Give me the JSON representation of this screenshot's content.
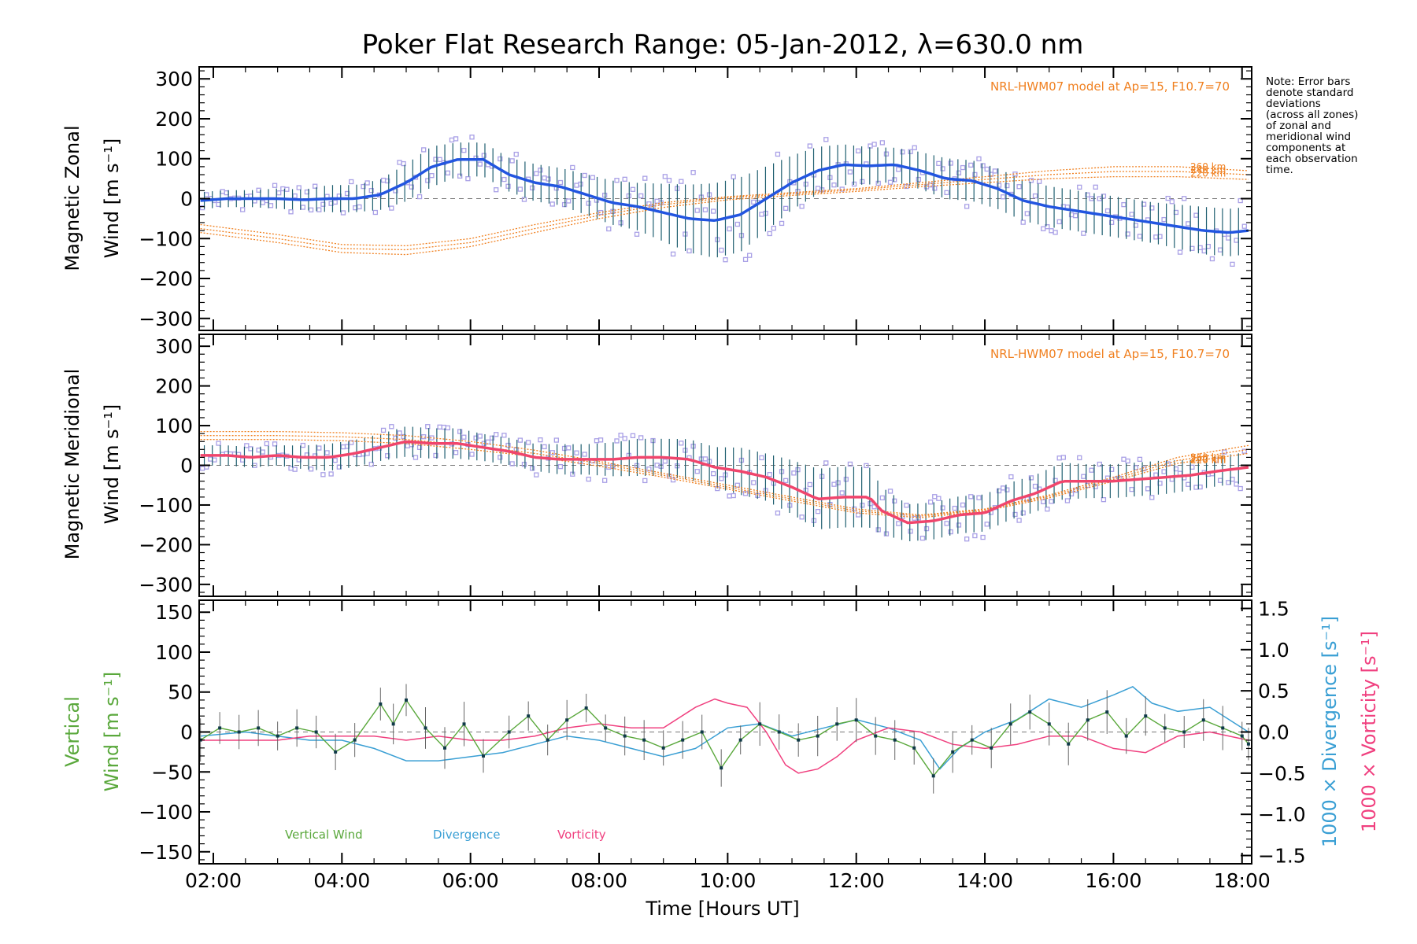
{
  "title": "Poker Flat Research Range: 05-Jan-2012, λ=630.0 nm",
  "note_lines": [
    "Note: Error bars",
    "denote standard",
    "deviations",
    "(across all zones)",
    "of zonal and",
    "meridional wind",
    "components at",
    "each observation",
    "time."
  ],
  "xaxis": {
    "label": "Time [Hours UT]",
    "ticks": [
      "02:00",
      "04:00",
      "06:00",
      "08:00",
      "10:00",
      "12:00",
      "14:00",
      "16:00",
      "18:00"
    ],
    "range_hours": [
      1.78,
      18.15
    ]
  },
  "colors": {
    "zonal": "#2255e0",
    "meridional": "#f0456c",
    "vertical": "#5aa83c",
    "divergence": "#3a9fd4",
    "vorticity": "#f0407f",
    "model": "#f08020",
    "zone_box": "#a9a0e6",
    "errorbar": "#1f5f70"
  },
  "chart_data": [
    {
      "type": "line",
      "panel": "zonal",
      "ylabel_line1": "Magnetic Zonal",
      "ylabel_line2": "Wind [m s⁻¹]",
      "ylim": [
        -330,
        330
      ],
      "yticks": [
        "300",
        "200",
        "100",
        "0",
        "−100",
        "−200",
        "−300"
      ],
      "model_label": "NRL-HWM07 model at Ap=15, F10.7=70",
      "model_altitudes": [
        "260 km",
        "240 km",
        "220 km"
      ],
      "series": [
        {
          "role": "observed",
          "x": [
            1.8,
            2.2,
            2.6,
            3.0,
            3.4,
            3.8,
            4.2,
            4.6,
            5.0,
            5.4,
            5.8,
            6.2,
            6.6,
            7.0,
            7.4,
            7.8,
            8.2,
            8.6,
            9.0,
            9.4,
            9.8,
            10.2,
            10.6,
            11.0,
            11.4,
            11.8,
            12.2,
            12.6,
            13.0,
            13.4,
            13.8,
            14.2,
            14.6,
            15.0,
            15.4,
            15.8,
            16.2,
            16.6,
            17.0,
            17.4,
            17.8,
            18.1
          ],
          "y": [
            -5,
            0,
            0,
            0,
            -3,
            0,
            0,
            10,
            40,
            80,
            98,
            98,
            60,
            40,
            30,
            10,
            -10,
            -20,
            -35,
            -50,
            -55,
            -40,
            0,
            40,
            70,
            85,
            82,
            85,
            70,
            50,
            45,
            25,
            -5,
            -20,
            -30,
            -40,
            -50,
            -60,
            -70,
            -80,
            -85,
            -80
          ],
          "spread": [
            25,
            25,
            25,
            30,
            30,
            40,
            40,
            45,
            55,
            60,
            50,
            50,
            50,
            55,
            55,
            60,
            65,
            70,
            85,
            100,
            110,
            110,
            95,
            80,
            70,
            60,
            55,
            50,
            55,
            60,
            60,
            60,
            60,
            60,
            60,
            60,
            60,
            60,
            65,
            70,
            70,
            70
          ]
        },
        {
          "role": "model",
          "name": "260 km",
          "x": [
            1.8,
            3.0,
            4.0,
            5.0,
            6.0,
            7.0,
            8.0,
            9.0,
            10.0,
            11.0,
            12.0,
            13.0,
            14.0,
            15.0,
            16.0,
            17.0,
            18.1
          ],
          "y": [
            -65,
            -90,
            -115,
            -118,
            -100,
            -65,
            -35,
            -10,
            5,
            15,
            25,
            40,
            55,
            70,
            80,
            80,
            70
          ]
        },
        {
          "role": "model",
          "name": "240 km",
          "x": [
            1.8,
            3.0,
            4.0,
            5.0,
            6.0,
            7.0,
            8.0,
            9.0,
            10.0,
            11.0,
            12.0,
            13.0,
            14.0,
            15.0,
            16.0,
            17.0,
            18.1
          ],
          "y": [
            -75,
            -100,
            -125,
            -128,
            -110,
            -75,
            -42,
            -15,
            2,
            12,
            22,
            35,
            48,
            60,
            68,
            68,
            60
          ]
        },
        {
          "role": "model",
          "name": "220 km",
          "x": [
            1.8,
            3.0,
            4.0,
            5.0,
            6.0,
            7.0,
            8.0,
            9.0,
            10.0,
            11.0,
            12.0,
            13.0,
            14.0,
            15.0,
            16.0,
            17.0,
            18.1
          ],
          "y": [
            -85,
            -110,
            -135,
            -140,
            -120,
            -85,
            -50,
            -22,
            -3,
            8,
            18,
            30,
            40,
            50,
            55,
            55,
            48
          ]
        }
      ]
    },
    {
      "type": "line",
      "panel": "meridional",
      "ylabel_line1": "Magnetic Meridional",
      "ylabel_line2": "Wind [m s⁻¹]",
      "ylim": [
        -330,
        330
      ],
      "yticks": [
        "300",
        "200",
        "100",
        "0",
        "−100",
        "−200",
        "−300"
      ],
      "model_label": "NRL-HWM07 model at Ap=15, F10.7=70",
      "model_altitudes": [
        "260 km",
        "240 km",
        "220 km"
      ],
      "series": [
        {
          "role": "observed",
          "x": [
            1.8,
            2.2,
            2.6,
            3.0,
            3.4,
            3.8,
            4.2,
            4.6,
            5.0,
            5.4,
            5.8,
            6.2,
            6.6,
            7.0,
            7.4,
            7.8,
            8.2,
            8.6,
            9.0,
            9.4,
            9.8,
            10.2,
            10.6,
            11.0,
            11.4,
            11.8,
            12.2,
            12.4,
            12.8,
            13.2,
            13.6,
            14.0,
            14.4,
            14.8,
            15.2,
            15.6,
            16.0,
            16.4,
            16.8,
            17.2,
            17.6,
            18.1
          ],
          "y": [
            25,
            25,
            20,
            25,
            20,
            20,
            30,
            45,
            60,
            55,
            55,
            45,
            35,
            20,
            15,
            15,
            15,
            20,
            20,
            15,
            -5,
            -15,
            -30,
            -55,
            -85,
            -80,
            -80,
            -115,
            -145,
            -140,
            -125,
            -120,
            -90,
            -70,
            -40,
            -40,
            -40,
            -35,
            -30,
            -25,
            -15,
            -5
          ],
          "spread": [
            30,
            30,
            30,
            30,
            35,
            40,
            40,
            40,
            45,
            45,
            45,
            40,
            40,
            40,
            45,
            45,
            50,
            55,
            55,
            60,
            60,
            70,
            70,
            80,
            90,
            90,
            90,
            70,
            55,
            55,
            55,
            55,
            55,
            55,
            55,
            50,
            50,
            50,
            50,
            45,
            45,
            45
          ]
        },
        {
          "role": "model",
          "name": "260 km",
          "x": [
            1.8,
            3.0,
            4.0,
            5.0,
            6.0,
            7.0,
            8.0,
            9.0,
            10.0,
            11.0,
            12.0,
            13.0,
            14.0,
            15.0,
            16.0,
            17.0,
            18.1
          ],
          "y": [
            85,
            85,
            82,
            75,
            60,
            38,
            10,
            -20,
            -50,
            -80,
            -110,
            -125,
            -110,
            -75,
            -30,
            20,
            50
          ]
        },
        {
          "role": "model",
          "name": "240 km",
          "x": [
            1.8,
            3.0,
            4.0,
            5.0,
            6.0,
            7.0,
            8.0,
            9.0,
            10.0,
            11.0,
            12.0,
            13.0,
            14.0,
            15.0,
            16.0,
            17.0,
            18.1
          ],
          "y": [
            75,
            75,
            72,
            65,
            50,
            30,
            5,
            -25,
            -55,
            -85,
            -115,
            -128,
            -112,
            -78,
            -35,
            12,
            40
          ]
        },
        {
          "role": "model",
          "name": "220 km",
          "x": [
            1.8,
            3.0,
            4.0,
            5.0,
            6.0,
            7.0,
            8.0,
            9.0,
            10.0,
            11.0,
            12.0,
            13.0,
            14.0,
            15.0,
            16.0,
            17.0,
            18.1
          ],
          "y": [
            65,
            65,
            62,
            55,
            40,
            22,
            -2,
            -30,
            -60,
            -90,
            -120,
            -132,
            -115,
            -82,
            -40,
            5,
            30
          ]
        }
      ]
    },
    {
      "type": "line",
      "panel": "vertical",
      "ylabel_line1": "Vertical",
      "ylabel_line2": "Wind [m s⁻¹]",
      "ylim": [
        -165,
        165
      ],
      "yticks": [
        "150",
        "100",
        "50",
        "0",
        "−50",
        "−100",
        "−150"
      ],
      "right_axis": {
        "label_divergence": "1000 × Divergence [s⁻¹]",
        "label_vorticity": "1000 × Vorticity [s⁻¹]",
        "ylim": [
          -1.6,
          1.6
        ],
        "yticks": [
          "1.5",
          "1.0",
          "0.5",
          "0.0",
          "−0.5",
          "−1.0",
          "−1.5"
        ]
      },
      "legend": [
        "Vertical Wind",
        "Divergence",
        "Vorticity"
      ],
      "series": [
        {
          "role": "vertical",
          "name": "Vertical Wind",
          "x": [
            1.8,
            2.1,
            2.4,
            2.7,
            3.0,
            3.3,
            3.6,
            3.9,
            4.2,
            4.6,
            4.8,
            5.0,
            5.3,
            5.6,
            5.9,
            6.2,
            6.6,
            6.9,
            7.2,
            7.5,
            7.8,
            8.1,
            8.4,
            8.7,
            9.0,
            9.3,
            9.6,
            9.9,
            10.2,
            10.5,
            10.8,
            11.1,
            11.4,
            11.7,
            12.0,
            12.3,
            12.6,
            12.9,
            13.2,
            13.5,
            13.8,
            14.1,
            14.4,
            14.7,
            15.0,
            15.3,
            15.6,
            15.9,
            16.2,
            16.5,
            16.8,
            17.1,
            17.4,
            17.7,
            18.0,
            18.1
          ],
          "y": [
            -10,
            5,
            0,
            5,
            -5,
            5,
            0,
            -25,
            -10,
            35,
            10,
            40,
            5,
            -20,
            10,
            -30,
            0,
            20,
            -10,
            15,
            30,
            5,
            -5,
            -10,
            -20,
            -10,
            0,
            -45,
            -10,
            10,
            0,
            -10,
            -5,
            10,
            15,
            -5,
            -10,
            -20,
            -55,
            -25,
            -10,
            -20,
            10,
            25,
            10,
            -15,
            15,
            25,
            -5,
            20,
            5,
            0,
            15,
            5,
            -5,
            -15
          ]
        },
        {
          "role": "divergence",
          "name": "Divergence",
          "x": [
            1.8,
            2.5,
            3.0,
            3.5,
            4.0,
            4.5,
            5.0,
            5.5,
            6.0,
            6.5,
            7.0,
            7.5,
            8.0,
            8.5,
            9.0,
            9.5,
            10.0,
            10.5,
            11.0,
            11.5,
            12.0,
            12.5,
            13.0,
            13.3,
            13.6,
            14.0,
            14.5,
            15.0,
            15.5,
            16.0,
            16.3,
            16.6,
            17.0,
            17.5,
            18.1
          ],
          "y": [
            -0.05,
            0.0,
            -0.05,
            -0.1,
            -0.1,
            -0.2,
            -0.35,
            -0.35,
            -0.3,
            -0.25,
            -0.15,
            -0.05,
            -0.1,
            -0.2,
            -0.3,
            -0.2,
            0.05,
            0.1,
            -0.05,
            0.05,
            0.15,
            0.05,
            -0.1,
            -0.45,
            -0.2,
            0.0,
            0.15,
            0.4,
            0.3,
            0.45,
            0.55,
            0.35,
            0.25,
            0.3,
            0.0
          ]
        },
        {
          "role": "vorticity",
          "name": "Vorticity",
          "x": [
            1.8,
            2.5,
            3.0,
            3.5,
            4.0,
            4.5,
            5.0,
            5.5,
            6.0,
            6.5,
            7.0,
            7.5,
            8.0,
            8.5,
            9.0,
            9.5,
            9.8,
            10.0,
            10.3,
            10.6,
            10.9,
            11.1,
            11.4,
            11.7,
            12.0,
            12.5,
            13.0,
            13.5,
            14.0,
            14.5,
            15.0,
            15.5,
            16.0,
            16.5,
            17.0,
            17.5,
            18.1
          ],
          "y": [
            -0.1,
            -0.1,
            -0.1,
            -0.05,
            -0.05,
            -0.05,
            -0.1,
            -0.05,
            -0.1,
            -0.1,
            -0.05,
            0.05,
            0.1,
            0.05,
            0.05,
            0.3,
            0.4,
            0.35,
            0.3,
            0.0,
            -0.4,
            -0.5,
            -0.45,
            -0.3,
            -0.1,
            0.05,
            0.0,
            -0.15,
            -0.2,
            -0.15,
            -0.05,
            -0.05,
            -0.2,
            -0.25,
            -0.05,
            0.0,
            -0.1
          ]
        }
      ]
    }
  ]
}
